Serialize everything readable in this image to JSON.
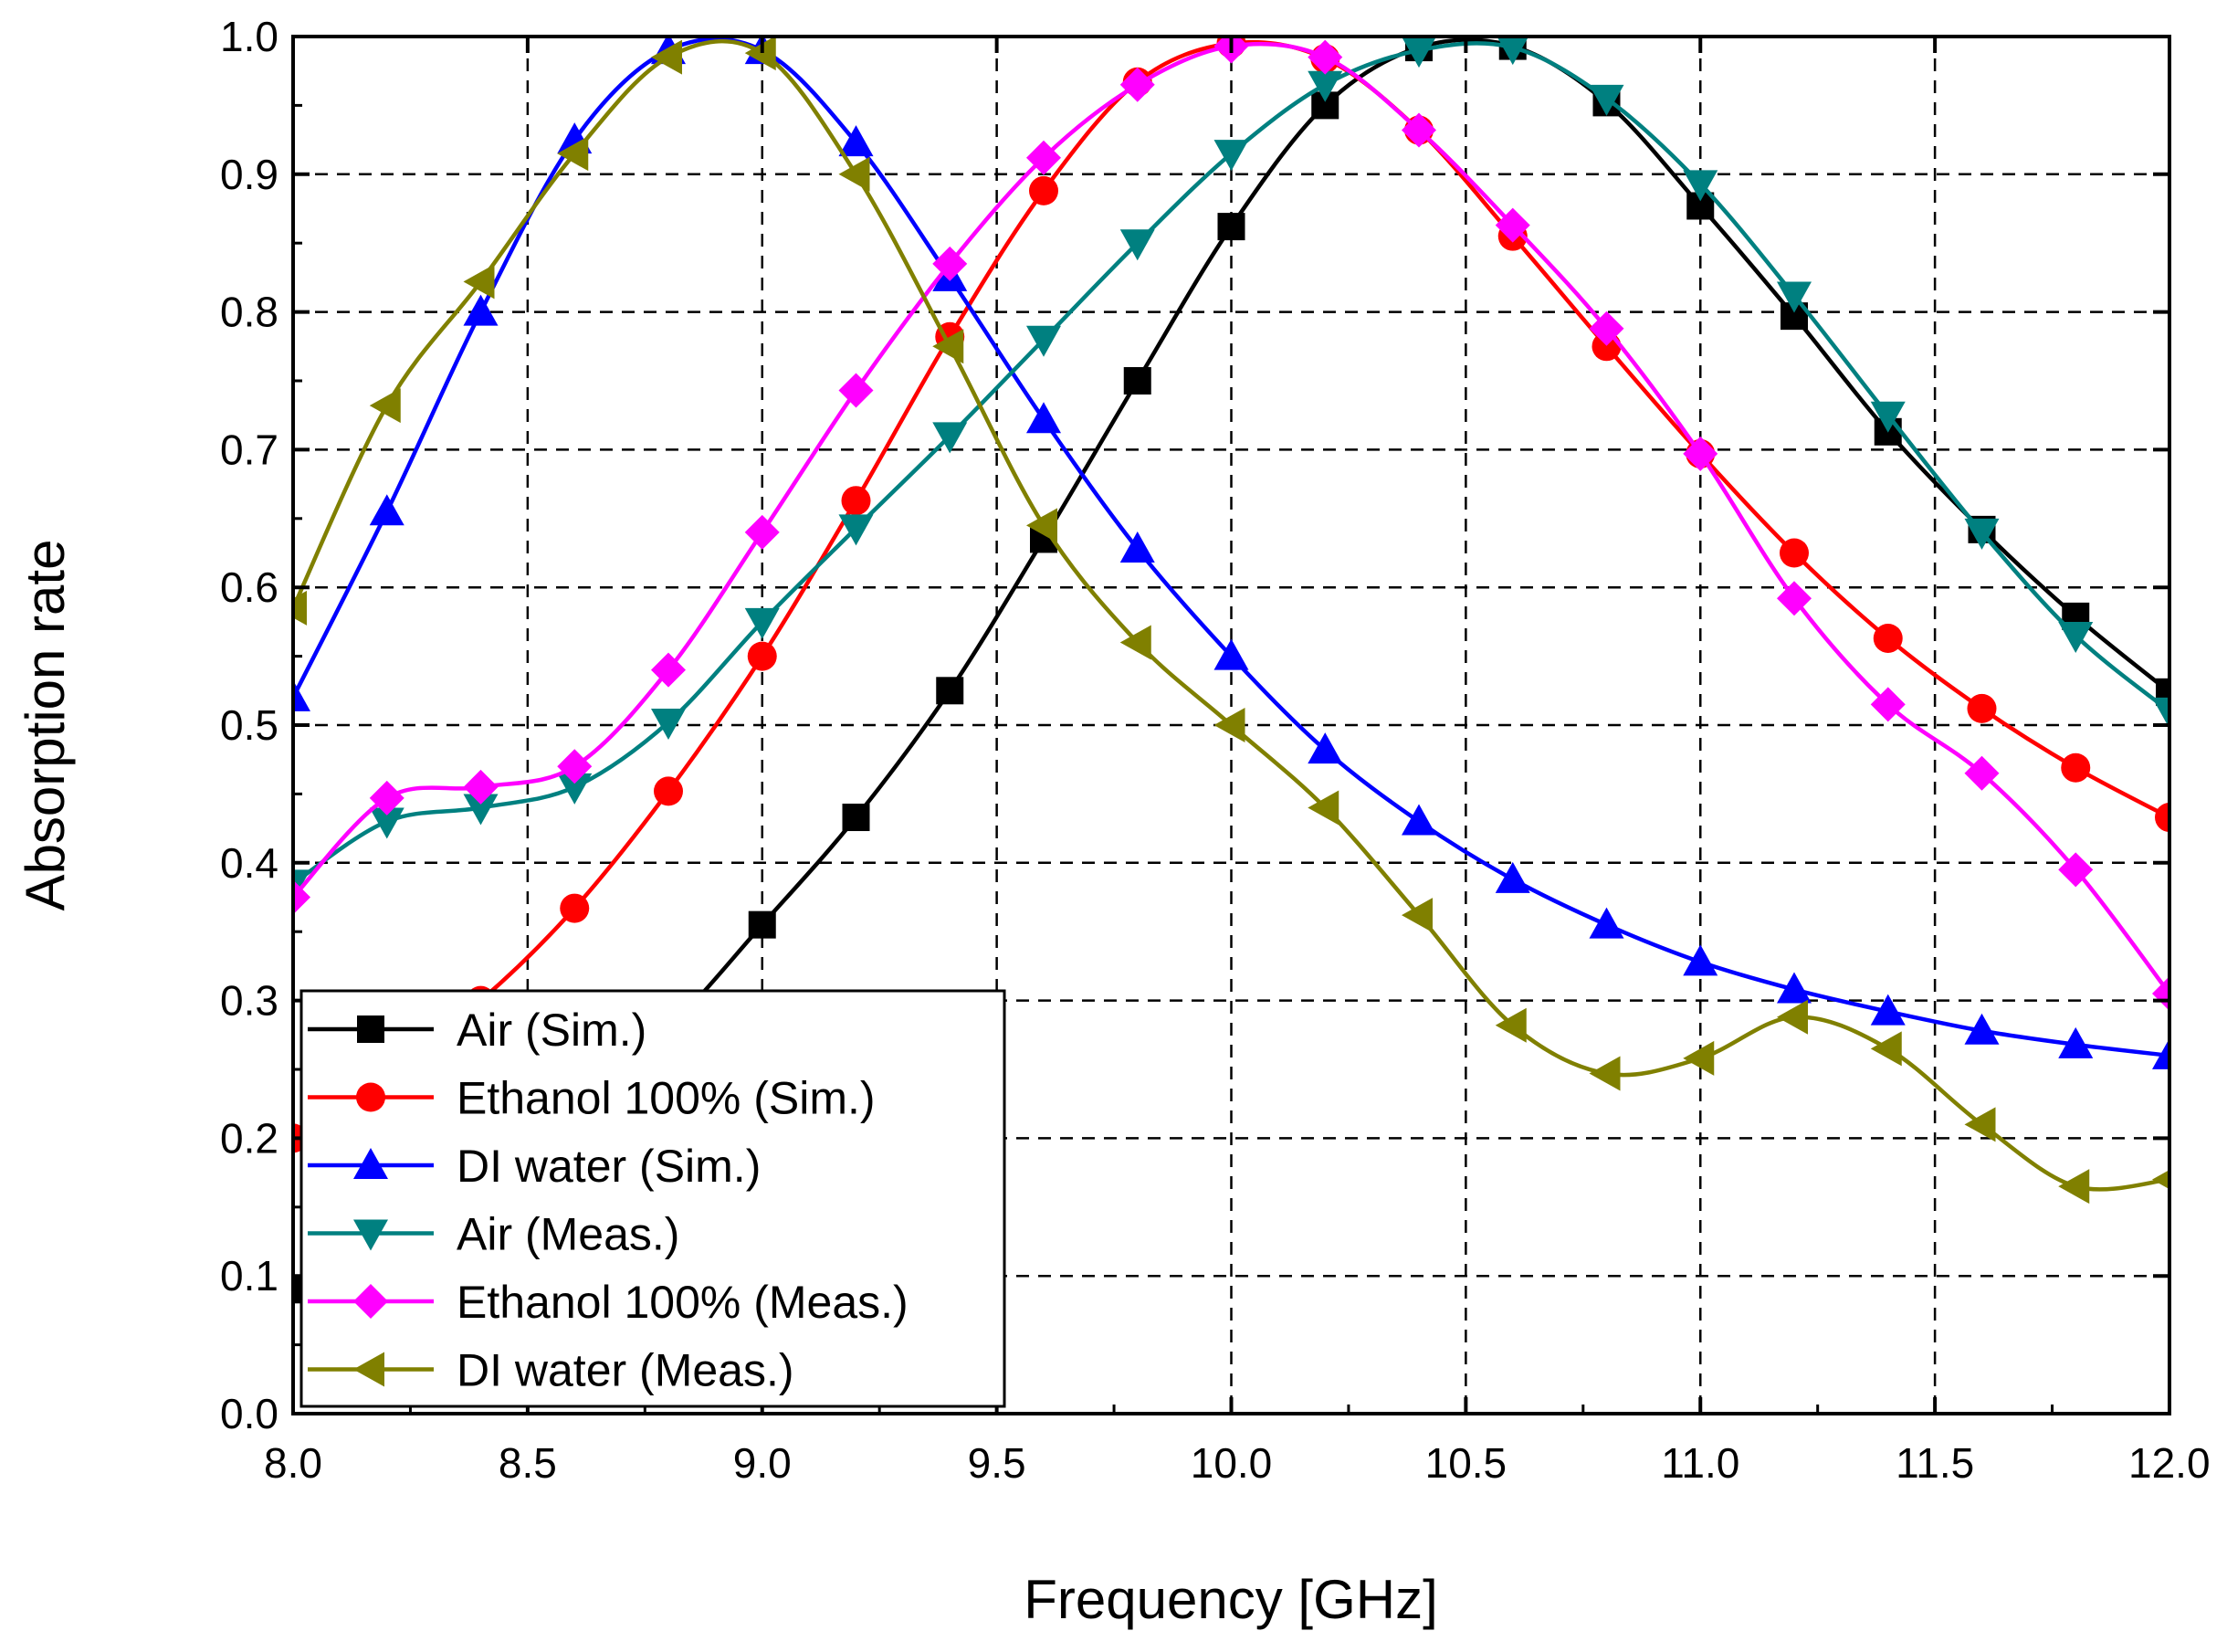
{
  "chart_data": {
    "type": "line",
    "xlabel": "Frequency [GHz]",
    "ylabel": "Absorption rate",
    "xlim": [
      8.0,
      12.0
    ],
    "ylim": [
      0.0,
      1.0
    ],
    "x_ticks": [
      "8.0",
      "8.5",
      "9.0",
      "9.5",
      "10.0",
      "10.5",
      "11.0",
      "11.5",
      "12.0"
    ],
    "y_ticks": [
      "0.0",
      "0.1",
      "0.2",
      "0.3",
      "0.4",
      "0.5",
      "0.6",
      "0.7",
      "0.8",
      "0.9",
      "1.0"
    ],
    "grid": "dashed",
    "legend_position": "bottom-left",
    "series": [
      {
        "name": "Air (Sim.)",
        "color": "#000000",
        "marker": "square",
        "x": [
          8.0,
          8.2,
          8.4,
          8.6,
          8.8,
          9.0,
          9.2,
          9.4,
          9.6,
          9.8,
          10.0,
          10.2,
          10.4,
          10.6,
          10.8,
          11.0,
          11.2,
          11.4,
          11.6,
          11.8,
          12.0
        ],
        "y": [
          0.09,
          0.13,
          0.18,
          0.23,
          0.28,
          0.355,
          0.433,
          0.525,
          0.635,
          0.75,
          0.862,
          0.95,
          0.992,
          0.993,
          0.952,
          0.877,
          0.797,
          0.713,
          0.642,
          0.579,
          0.524
        ]
      },
      {
        "name": "Ethanol 100% (Sim.)",
        "color": "#ff0000",
        "marker": "circle",
        "x": [
          8.0,
          8.2,
          8.4,
          8.6,
          8.8,
          9.0,
          9.2,
          9.4,
          9.6,
          9.8,
          10.0,
          10.2,
          10.4,
          10.6,
          10.8,
          11.0,
          11.2,
          11.4,
          11.6,
          11.8,
          12.0
        ],
        "y": [
          0.2,
          0.25,
          0.3,
          0.367,
          0.452,
          0.55,
          0.663,
          0.782,
          0.888,
          0.967,
          0.995,
          0.984,
          0.932,
          0.855,
          0.775,
          0.697,
          0.625,
          0.563,
          0.512,
          0.469,
          0.433
        ]
      },
      {
        "name": "DI water (Sim.)",
        "color": "#0000ff",
        "marker": "triangle-up",
        "x": [
          8.0,
          8.2,
          8.4,
          8.6,
          8.8,
          9.0,
          9.2,
          9.4,
          9.6,
          9.8,
          10.0,
          10.2,
          10.4,
          10.6,
          10.8,
          11.0,
          11.2,
          11.4,
          11.6,
          11.8,
          12.0
        ],
        "y": [
          0.52,
          0.655,
          0.8,
          0.925,
          0.99,
          0.99,
          0.923,
          0.825,
          0.722,
          0.628,
          0.55,
          0.482,
          0.43,
          0.388,
          0.355,
          0.328,
          0.308,
          0.292,
          0.278,
          0.268,
          0.26
        ]
      },
      {
        "name": "Air (Meas.)",
        "color": "#008080",
        "marker": "triangle-down",
        "x": [
          8.0,
          8.2,
          8.4,
          8.6,
          8.8,
          9.0,
          9.2,
          9.4,
          9.6,
          9.8,
          10.0,
          10.2,
          10.4,
          10.6,
          10.8,
          11.0,
          11.2,
          11.4,
          11.6,
          11.8,
          12.0
        ],
        "y": [
          0.385,
          0.43,
          0.44,
          0.455,
          0.502,
          0.575,
          0.643,
          0.71,
          0.78,
          0.85,
          0.915,
          0.965,
          0.99,
          0.992,
          0.955,
          0.893,
          0.812,
          0.725,
          0.64,
          0.565,
          0.51
        ]
      },
      {
        "name": "Ethanol 100% (Meas.)",
        "color": "#ff00ff",
        "marker": "diamond",
        "x": [
          8.0,
          8.2,
          8.4,
          8.6,
          8.8,
          9.0,
          9.2,
          9.4,
          9.6,
          9.8,
          10.0,
          10.2,
          10.4,
          10.6,
          10.8,
          11.0,
          11.2,
          11.4,
          11.6,
          11.8,
          12.0
        ],
        "y": [
          0.375,
          0.447,
          0.455,
          0.47,
          0.54,
          0.64,
          0.743,
          0.835,
          0.912,
          0.965,
          0.993,
          0.985,
          0.932,
          0.863,
          0.788,
          0.697,
          0.592,
          0.515,
          0.465,
          0.395,
          0.305
        ]
      },
      {
        "name": "DI water (Meas.)",
        "color": "#808000",
        "marker": "triangle-left",
        "x": [
          8.0,
          8.2,
          8.4,
          8.6,
          8.8,
          9.0,
          9.2,
          9.4,
          9.6,
          9.8,
          10.0,
          10.2,
          10.4,
          10.6,
          10.8,
          11.0,
          11.2,
          11.4,
          11.6,
          11.8,
          12.0
        ],
        "y": [
          0.585,
          0.732,
          0.822,
          0.915,
          0.985,
          0.988,
          0.9,
          0.775,
          0.645,
          0.56,
          0.5,
          0.44,
          0.362,
          0.282,
          0.247,
          0.258,
          0.288,
          0.265,
          0.21,
          0.165,
          0.17
        ]
      }
    ]
  }
}
